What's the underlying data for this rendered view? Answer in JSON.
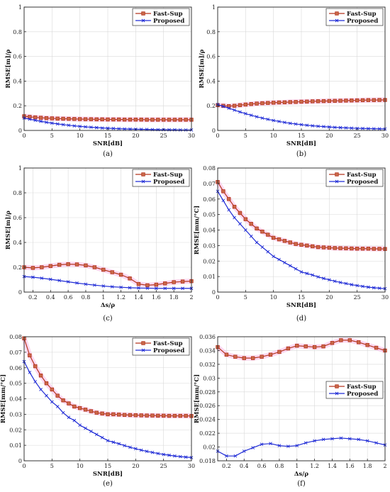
{
  "colors": {
    "fast_sup": "#b5351f",
    "fast_sup_marker": "#b5351f",
    "proposed": "#1f2bd6",
    "glow": "#f7b8e6"
  },
  "chart_data": [
    {
      "panel": "a",
      "type": "line",
      "caption": "(a)",
      "xlabel": "SNR[dB]",
      "ylabel": "RMSE[m]/ρ",
      "xlim": [
        0,
        30
      ],
      "ylim": [
        0,
        1
      ],
      "xticks": [
        0,
        5,
        10,
        15,
        20,
        25,
        30
      ],
      "xticklabels": [
        "0",
        "5",
        "10",
        "15",
        "20",
        "25",
        "30"
      ],
      "yticks": [
        0,
        0.2,
        0.4,
        0.6,
        0.8,
        1
      ],
      "yticklabels": [
        "0",
        "0.2",
        "0.4",
        "0.6",
        "0.8",
        "1"
      ],
      "grid": true,
      "legend_position": "top-right",
      "series": [
        {
          "name": "Fast-Sup",
          "marker": "square",
          "x": [
            0,
            1,
            2,
            3,
            4,
            5,
            6,
            7,
            8,
            9,
            10,
            11,
            12,
            13,
            14,
            15,
            16,
            17,
            18,
            19,
            20,
            21,
            22,
            23,
            24,
            25,
            26,
            27,
            28,
            29,
            30
          ],
          "y": [
            0.115,
            0.11,
            0.106,
            0.103,
            0.1,
            0.098,
            0.096,
            0.095,
            0.094,
            0.093,
            0.092,
            0.091,
            0.091,
            0.09,
            0.09,
            0.089,
            0.089,
            0.089,
            0.088,
            0.088,
            0.088,
            0.088,
            0.087,
            0.087,
            0.087,
            0.087,
            0.087,
            0.087,
            0.087,
            0.087,
            0.087
          ]
        },
        {
          "name": "Proposed",
          "marker": "x",
          "x": [
            0,
            1,
            2,
            3,
            4,
            5,
            6,
            7,
            8,
            9,
            10,
            11,
            12,
            13,
            14,
            15,
            16,
            17,
            18,
            19,
            20,
            21,
            22,
            23,
            24,
            25,
            26,
            27,
            28,
            29,
            30
          ],
          "y": [
            0.1,
            0.091,
            0.082,
            0.074,
            0.066,
            0.059,
            0.053,
            0.047,
            0.042,
            0.037,
            0.033,
            0.029,
            0.026,
            0.023,
            0.02,
            0.018,
            0.016,
            0.014,
            0.012,
            0.011,
            0.01,
            0.009,
            0.008,
            0.007,
            0.006,
            0.006,
            0.005,
            0.005,
            0.004,
            0.004,
            0.004
          ]
        }
      ]
    },
    {
      "panel": "b",
      "type": "line",
      "caption": "(b)",
      "xlabel": "SNR[dB]",
      "ylabel": "RMSE[m]/ρ",
      "xlim": [
        0,
        30
      ],
      "ylim": [
        0,
        1
      ],
      "xticks": [
        0,
        5,
        10,
        15,
        20,
        25,
        30
      ],
      "xticklabels": [
        "0",
        "5",
        "10",
        "15",
        "20",
        "25",
        "30"
      ],
      "yticks": [
        0,
        0.2,
        0.4,
        0.6,
        0.8,
        1
      ],
      "yticklabels": [
        "0",
        "0.2",
        "0.4",
        "0.6",
        "0.8",
        "1"
      ],
      "grid": true,
      "legend_position": "top-right",
      "series": [
        {
          "name": "Fast-Sup",
          "marker": "square",
          "x": [
            0,
            1,
            2,
            3,
            4,
            5,
            6,
            7,
            8,
            9,
            10,
            11,
            12,
            13,
            14,
            15,
            16,
            17,
            18,
            19,
            20,
            21,
            22,
            23,
            24,
            25,
            26,
            27,
            28,
            29,
            30
          ],
          "y": [
            0.205,
            0.2,
            0.197,
            0.2,
            0.205,
            0.21,
            0.214,
            0.218,
            0.221,
            0.223,
            0.225,
            0.227,
            0.228,
            0.23,
            0.231,
            0.233,
            0.234,
            0.236,
            0.237,
            0.238,
            0.239,
            0.24,
            0.241,
            0.242,
            0.243,
            0.244,
            0.245,
            0.246,
            0.246,
            0.247,
            0.247
          ]
        },
        {
          "name": "Proposed",
          "marker": "x",
          "x": [
            0,
            1,
            2,
            3,
            4,
            5,
            6,
            7,
            8,
            9,
            10,
            11,
            12,
            13,
            14,
            15,
            16,
            17,
            18,
            19,
            20,
            21,
            22,
            23,
            24,
            25,
            26,
            27,
            28,
            29,
            30
          ],
          "y": [
            0.21,
            0.195,
            0.18,
            0.165,
            0.15,
            0.136,
            0.123,
            0.111,
            0.1,
            0.09,
            0.081,
            0.073,
            0.065,
            0.058,
            0.052,
            0.047,
            0.042,
            0.038,
            0.034,
            0.031,
            0.028,
            0.025,
            0.023,
            0.021,
            0.019,
            0.017,
            0.016,
            0.015,
            0.014,
            0.013,
            0.012
          ]
        }
      ]
    },
    {
      "panel": "c",
      "type": "line",
      "caption": "(c)",
      "xlabel": "Δs/ρ",
      "ylabel": "RMSE[m]/ρ",
      "xlim": [
        0.1,
        2
      ],
      "ylim": [
        0,
        1
      ],
      "xticks": [
        0.2,
        0.4,
        0.6,
        0.8,
        1,
        1.2,
        1.4,
        1.6,
        1.8,
        2
      ],
      "xticklabels": [
        "0.2",
        "0.4",
        "0.6",
        "0.8",
        "1",
        "1.2",
        "1.4",
        "1.6",
        "1.8",
        "2"
      ],
      "yticks": [
        0,
        0.2,
        0.4,
        0.6,
        0.8,
        1
      ],
      "yticklabels": [
        "0",
        "0.2",
        "0.4",
        "0.6",
        "0.8",
        "1"
      ],
      "grid": true,
      "legend_position": "top-right",
      "series": [
        {
          "name": "Fast-Sup",
          "marker": "square",
          "x": [
            0.1,
            0.2,
            0.3,
            0.4,
            0.5,
            0.6,
            0.7,
            0.8,
            0.9,
            1.0,
            1.1,
            1.2,
            1.3,
            1.4,
            1.5,
            1.6,
            1.7,
            1.8,
            1.9,
            2.0
          ],
          "y": [
            0.2,
            0.195,
            0.2,
            0.21,
            0.22,
            0.225,
            0.223,
            0.215,
            0.2,
            0.18,
            0.16,
            0.14,
            0.11,
            0.065,
            0.055,
            0.06,
            0.07,
            0.08,
            0.085,
            0.088
          ]
        },
        {
          "name": "Proposed",
          "marker": "x",
          "x": [
            0.1,
            0.2,
            0.3,
            0.4,
            0.5,
            0.6,
            0.7,
            0.8,
            0.9,
            1.0,
            1.1,
            1.2,
            1.3,
            1.4,
            1.5,
            1.6,
            1.7,
            1.8,
            1.9,
            2.0
          ],
          "y": [
            0.125,
            0.12,
            0.112,
            0.103,
            0.093,
            0.083,
            0.073,
            0.064,
            0.056,
            0.049,
            0.043,
            0.039,
            0.035,
            0.033,
            0.031,
            0.03,
            0.03,
            0.03,
            0.03,
            0.03
          ]
        }
      ]
    },
    {
      "panel": "d",
      "type": "line",
      "caption": "(d)",
      "xlabel": "SNR[dB]",
      "ylabel": "RMSE[mm/°C]",
      "xlim": [
        0,
        30
      ],
      "ylim": [
        0,
        0.08
      ],
      "xticks": [
        0,
        5,
        10,
        15,
        20,
        25,
        30
      ],
      "xticklabels": [
        "0",
        "5",
        "10",
        "15",
        "20",
        "25",
        "30"
      ],
      "yticks": [
        0,
        0.01,
        0.02,
        0.03,
        0.04,
        0.05,
        0.06,
        0.07,
        0.08
      ],
      "yticklabels": [
        "0",
        "0.01",
        "0.02",
        "0.03",
        "0.04",
        "0.05",
        "0.06",
        "0.07",
        "0.08"
      ],
      "grid": true,
      "legend_position": "top-right",
      "series": [
        {
          "name": "Fast-Sup",
          "marker": "square",
          "x": [
            0,
            1,
            2,
            3,
            4,
            5,
            6,
            7,
            8,
            9,
            10,
            11,
            12,
            13,
            14,
            15,
            16,
            17,
            18,
            19,
            20,
            21,
            22,
            23,
            24,
            25,
            26,
            27,
            28,
            29,
            30
          ],
          "y": [
            0.071,
            0.065,
            0.06,
            0.055,
            0.051,
            0.047,
            0.044,
            0.041,
            0.039,
            0.037,
            0.035,
            0.034,
            0.033,
            0.032,
            0.031,
            0.0305,
            0.03,
            0.0295,
            0.029,
            0.0288,
            0.0286,
            0.0284,
            0.0283,
            0.0282,
            0.0281,
            0.028,
            0.028,
            0.028,
            0.0279,
            0.0279,
            0.0278
          ]
        },
        {
          "name": "Proposed",
          "marker": "x",
          "x": [
            0,
            1,
            2,
            3,
            4,
            5,
            6,
            7,
            8,
            9,
            10,
            11,
            12,
            13,
            14,
            15,
            16,
            17,
            18,
            19,
            20,
            21,
            22,
            23,
            24,
            25,
            26,
            27,
            28,
            29,
            30
          ],
          "y": [
            0.065,
            0.059,
            0.053,
            0.048,
            0.044,
            0.04,
            0.036,
            0.032,
            0.029,
            0.026,
            0.023,
            0.021,
            0.019,
            0.017,
            0.015,
            0.013,
            0.012,
            0.011,
            0.0098,
            0.0088,
            0.0079,
            0.007,
            0.0062,
            0.0055,
            0.0048,
            0.0042,
            0.0037,
            0.0032,
            0.0028,
            0.0025,
            0.0022
          ]
        }
      ]
    },
    {
      "panel": "e",
      "type": "line",
      "caption": "(e)",
      "xlabel": "SNR[dB]",
      "ylabel": "RMSE[mm/°C]",
      "xlim": [
        0,
        30
      ],
      "ylim": [
        0,
        0.08
      ],
      "xticks": [
        0,
        5,
        10,
        15,
        20,
        25,
        30
      ],
      "xticklabels": [
        "0",
        "5",
        "10",
        "15",
        "20",
        "25",
        "30"
      ],
      "yticks": [
        0,
        0.01,
        0.02,
        0.03,
        0.04,
        0.05,
        0.06,
        0.07,
        0.08
      ],
      "yticklabels": [
        "0",
        "0.01",
        "0.02",
        "0.03",
        "0.04",
        "0.05",
        "0.06",
        "0.07",
        "0.08"
      ],
      "grid": true,
      "legend_position": "top-right",
      "series": [
        {
          "name": "Fast-Sup",
          "marker": "square",
          "x": [
            0,
            1,
            2,
            3,
            4,
            5,
            6,
            7,
            8,
            9,
            10,
            11,
            12,
            13,
            14,
            15,
            16,
            17,
            18,
            19,
            20,
            21,
            22,
            23,
            24,
            25,
            26,
            27,
            28,
            29,
            30
          ],
          "y": [
            0.079,
            0.068,
            0.061,
            0.055,
            0.05,
            0.046,
            0.042,
            0.039,
            0.037,
            0.035,
            0.034,
            0.033,
            0.032,
            0.031,
            0.0305,
            0.03,
            0.03,
            0.0298,
            0.0296,
            0.0295,
            0.0294,
            0.0293,
            0.0292,
            0.0292,
            0.0291,
            0.0291,
            0.029,
            0.029,
            0.029,
            0.029,
            0.0289
          ]
        },
        {
          "name": "Proposed",
          "marker": "x",
          "x": [
            0,
            1,
            2,
            3,
            4,
            5,
            6,
            7,
            8,
            9,
            10,
            11,
            12,
            13,
            14,
            15,
            16,
            17,
            18,
            19,
            20,
            21,
            22,
            23,
            24,
            25,
            26,
            27,
            28,
            29,
            30
          ],
          "y": [
            0.064,
            0.057,
            0.051,
            0.046,
            0.042,
            0.038,
            0.035,
            0.031,
            0.028,
            0.026,
            0.023,
            0.021,
            0.019,
            0.017,
            0.015,
            0.013,
            0.012,
            0.011,
            0.0098,
            0.0087,
            0.0078,
            0.0069,
            0.0061,
            0.0054,
            0.0047,
            0.0041,
            0.0036,
            0.0031,
            0.0027,
            0.0024,
            0.0021
          ]
        }
      ]
    },
    {
      "panel": "f",
      "type": "line",
      "caption": "(f)",
      "xlabel": "Δs/ρ",
      "ylabel": "RMSE[mm/°C]",
      "xlim": [
        0.1,
        2
      ],
      "ylim": [
        0.018,
        0.036
      ],
      "xticks": [
        0.2,
        0.4,
        0.6,
        0.8,
        1,
        1.2,
        1.4,
        1.6,
        1.8,
        2
      ],
      "xticklabels": [
        "0.2",
        "0.4",
        "0.6",
        "0.8",
        "1",
        "1.2",
        "1.4",
        "1.6",
        "1.8",
        "2"
      ],
      "yticks": [
        0.018,
        0.02,
        0.022,
        0.024,
        0.026,
        0.028,
        0.03,
        0.032,
        0.034,
        0.036
      ],
      "yticklabels": [
        "0.018",
        "0.02",
        "0.022",
        "0.024",
        "0.026",
        "0.028",
        "0.03",
        "0.032",
        "0.034",
        "0.036"
      ],
      "grid": true,
      "legend_position": "center-right",
      "series": [
        {
          "name": "Fast-Sup",
          "marker": "square",
          "x": [
            0.1,
            0.2,
            0.3,
            0.4,
            0.5,
            0.6,
            0.7,
            0.8,
            0.9,
            1.0,
            1.1,
            1.2,
            1.3,
            1.4,
            1.5,
            1.6,
            1.7,
            1.8,
            1.9,
            2.0
          ],
          "y": [
            0.0345,
            0.0334,
            0.0331,
            0.0329,
            0.0329,
            0.0331,
            0.0334,
            0.0338,
            0.0343,
            0.0347,
            0.0346,
            0.0345,
            0.0346,
            0.0351,
            0.0355,
            0.0355,
            0.0352,
            0.0348,
            0.0344,
            0.034
          ]
        },
        {
          "name": "Proposed",
          "marker": "x",
          "x": [
            0.1,
            0.2,
            0.3,
            0.4,
            0.5,
            0.6,
            0.7,
            0.8,
            0.9,
            1.0,
            1.1,
            1.2,
            1.3,
            1.4,
            1.5,
            1.6,
            1.7,
            1.8,
            1.9,
            2.0
          ],
          "y": [
            0.0194,
            0.0187,
            0.0187,
            0.0194,
            0.0199,
            0.0204,
            0.0205,
            0.0202,
            0.0201,
            0.0202,
            0.0206,
            0.0209,
            0.0211,
            0.0212,
            0.0213,
            0.0212,
            0.0211,
            0.0209,
            0.0206,
            0.0203
          ]
        }
      ]
    }
  ]
}
